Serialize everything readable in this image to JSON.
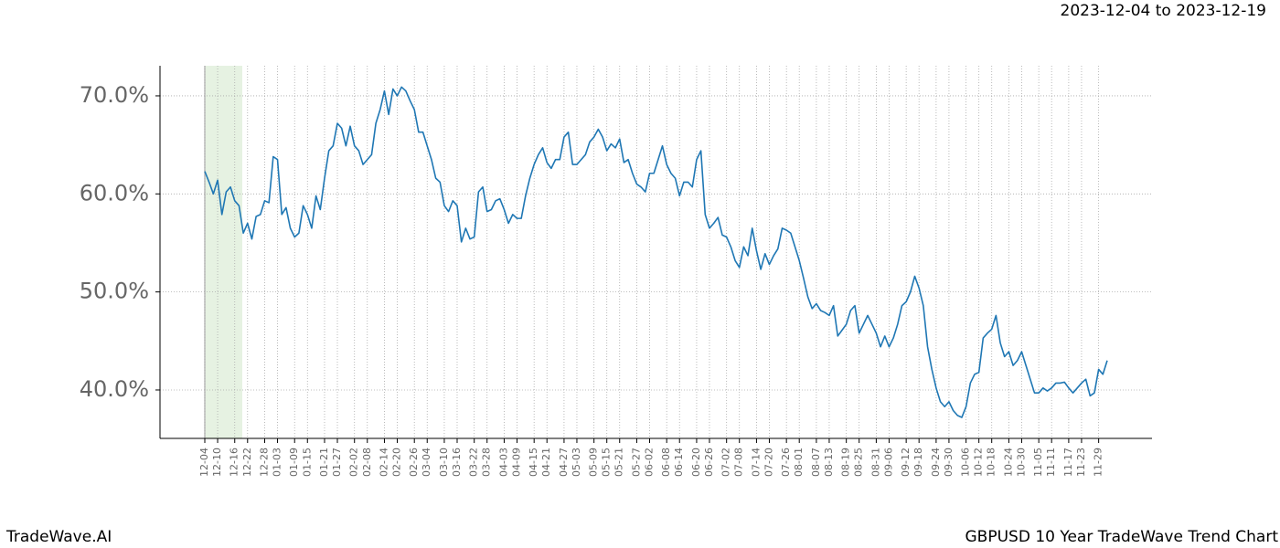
{
  "header": {
    "date_range": "2023-12-04 to 2023-12-19"
  },
  "footer": {
    "brand": "TradeWave.AI",
    "chart_title": "GBPUSD 10 Year TradeWave Trend Chart"
  },
  "chart_data": {
    "type": "line",
    "color": "#1f77b4",
    "grid": true,
    "ylim": [
      35.06,
      73.07
    ],
    "yticks": [
      {
        "value": 40,
        "label": "40.0%"
      },
      {
        "value": 50,
        "label": "50.0%"
      },
      {
        "value": 60,
        "label": "60.0%"
      },
      {
        "value": 70,
        "label": "70.0%"
      }
    ],
    "categories": [
      "12-04",
      null,
      null,
      "12-10",
      null,
      null,
      null,
      "12-16",
      null,
      null,
      "12-22",
      null,
      null,
      null,
      "12-28",
      null,
      null,
      "01-03",
      null,
      null,
      null,
      "01-09",
      null,
      null,
      "01-15",
      null,
      null,
      null,
      "01-21",
      null,
      null,
      "01-27",
      null,
      null,
      null,
      "02-02",
      null,
      null,
      "02-08",
      null,
      null,
      null,
      "02-14",
      null,
      null,
      "02-20",
      null,
      null,
      null,
      "02-26",
      null,
      null,
      "03-04",
      null,
      null,
      null,
      "03-10",
      null,
      null,
      "03-16",
      null,
      null,
      null,
      "03-22",
      null,
      null,
      "03-28",
      null,
      null,
      null,
      "04-03",
      null,
      null,
      "04-09",
      null,
      null,
      null,
      "04-15",
      null,
      null,
      "04-21",
      null,
      null,
      null,
      "04-27",
      null,
      null,
      "05-03",
      null,
      null,
      null,
      "05-09",
      null,
      null,
      "05-15",
      null,
      null,
      "05-21",
      null,
      null,
      null,
      "05-27",
      null,
      null,
      "06-02",
      null,
      null,
      null,
      "06-08",
      null,
      null,
      "06-14",
      null,
      null,
      null,
      "06-20",
      null,
      null,
      "06-26",
      null,
      null,
      null,
      "07-02",
      null,
      null,
      "07-08",
      null,
      null,
      null,
      "07-14",
      null,
      null,
      "07-20",
      null,
      null,
      null,
      "07-26",
      null,
      null,
      "08-01",
      null,
      null,
      null,
      "08-07",
      null,
      null,
      "08-13",
      null,
      null,
      null,
      "08-19",
      null,
      null,
      "08-25",
      null,
      null,
      null,
      "08-31",
      null,
      null,
      "09-06",
      null,
      null,
      null,
      "09-12",
      null,
      null,
      "09-18",
      null,
      null,
      null,
      "09-24",
      null,
      null,
      "09-30",
      null,
      null,
      null,
      "10-06",
      null,
      null,
      "10-12",
      null,
      null,
      "10-18",
      null,
      null,
      null,
      "10-24",
      null,
      null,
      "10-30",
      null,
      null,
      null,
      "11-05",
      null,
      null,
      "11-11",
      null,
      null,
      null,
      "11-17",
      null,
      null,
      "11-23",
      null,
      null,
      null,
      "11-29",
      null,
      null
    ],
    "values": [
      62.3,
      61.2,
      60.0,
      61.4,
      57.9,
      60.2,
      60.7,
      59.3,
      58.8,
      56.0,
      57.0,
      55.4,
      57.7,
      57.9,
      59.3,
      59.1,
      63.8,
      63.5,
      57.9,
      58.6,
      56.5,
      55.6,
      56.0,
      58.8,
      57.9,
      56.5,
      59.8,
      58.4,
      61.6,
      64.4,
      64.9,
      67.2,
      66.7,
      64.9,
      66.9,
      64.9,
      64.4,
      63.0,
      63.5,
      64.0,
      67.2,
      68.6,
      70.5,
      68.1,
      70.7,
      70.0,
      70.9,
      70.5,
      69.5,
      68.6,
      66.3,
      66.3,
      64.9,
      63.5,
      61.6,
      61.2,
      58.8,
      58.2,
      59.3,
      58.8,
      55.1,
      56.5,
      55.4,
      55.6,
      60.2,
      60.7,
      58.2,
      58.4,
      59.3,
      59.5,
      58.4,
      57.0,
      57.9,
      57.5,
      57.5,
      59.8,
      61.6,
      63.0,
      64.0,
      64.7,
      63.2,
      62.6,
      63.5,
      63.5,
      65.8,
      66.3,
      63.0,
      63.0,
      63.5,
      64.0,
      65.3,
      65.8,
      66.6,
      65.8,
      64.4,
      65.1,
      64.7,
      65.6,
      63.2,
      63.5,
      62.1,
      61.0,
      60.7,
      60.2,
      62.1,
      62.1,
      63.5,
      64.9,
      63.0,
      62.1,
      61.6,
      59.8,
      61.2,
      61.2,
      60.7,
      63.5,
      64.4,
      57.9,
      56.5,
      57.0,
      57.6,
      55.8,
      55.6,
      54.6,
      53.2,
      52.5,
      54.6,
      53.7,
      56.5,
      54.2,
      52.3,
      53.9,
      52.8,
      53.7,
      54.4,
      56.5,
      56.3,
      56.0,
      54.6,
      53.2,
      51.4,
      49.5,
      48.3,
      48.8,
      48.1,
      47.9,
      47.6,
      48.6,
      45.5,
      46.1,
      46.7,
      48.1,
      48.6,
      45.8,
      46.7,
      47.6,
      46.7,
      45.8,
      44.4,
      45.5,
      44.4,
      45.3,
      46.7,
      48.6,
      49.0,
      50.0,
      51.6,
      50.4,
      48.6,
      44.4,
      42.1,
      40.2,
      38.8,
      38.3,
      38.8,
      37.9,
      37.4,
      37.2,
      38.3,
      40.7,
      41.6,
      41.8,
      45.3,
      45.8,
      46.2,
      47.6,
      44.8,
      43.4,
      43.9,
      42.5,
      43.0,
      43.9,
      42.5,
      41.1,
      39.7,
      39.7,
      40.2,
      39.9,
      40.2,
      40.7,
      40.7,
      40.8,
      40.2,
      39.7,
      40.2,
      40.7,
      41.1,
      39.4,
      39.7,
      42.1,
      41.6,
      43.0
    ]
  }
}
